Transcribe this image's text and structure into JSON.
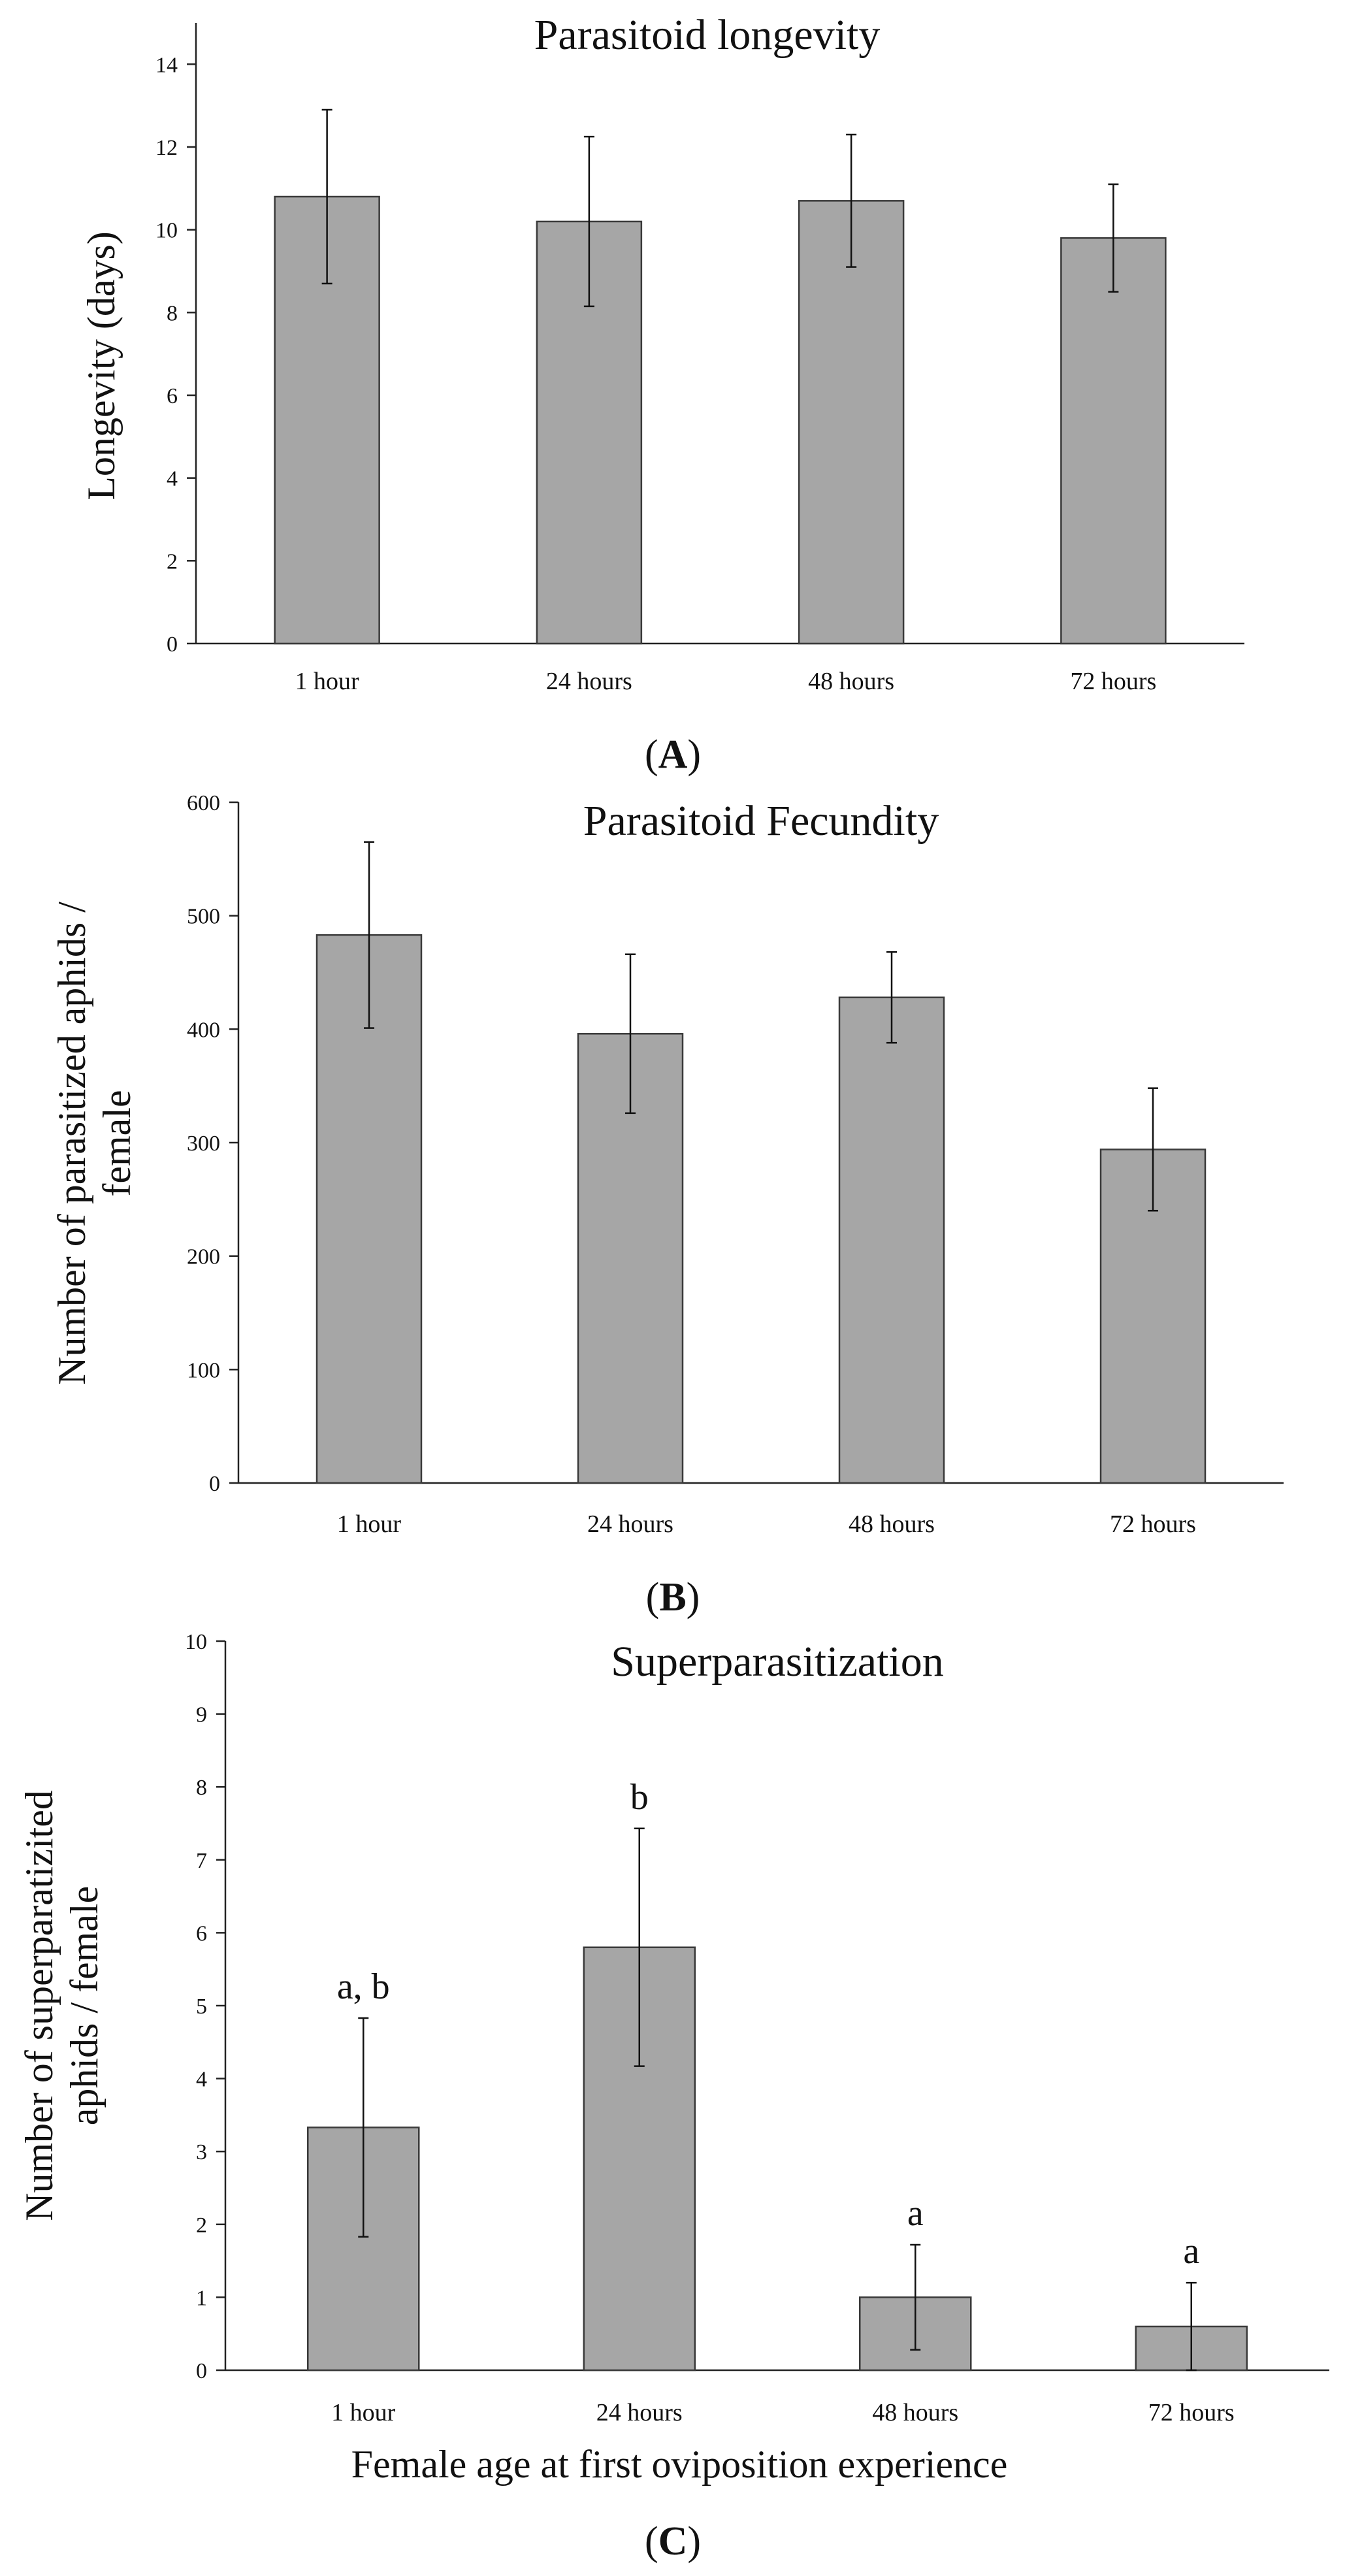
{
  "chart_data": [
    {
      "type": "bar",
      "panel_label": "A",
      "title": "Parasitoid longevity",
      "ylabel": "Longevity (days)",
      "xlabel": "",
      "categories": [
        "1 hour",
        "24 hours",
        "48 hours",
        "72 hours"
      ],
      "values": [
        10.8,
        10.2,
        10.7,
        9.8
      ],
      "error": [
        2.1,
        2.05,
        1.6,
        1.3
      ],
      "ylim": [
        0,
        15
      ],
      "yticks": [
        0,
        2,
        4,
        6,
        8,
        10,
        12,
        14
      ],
      "annotations": []
    },
    {
      "type": "bar",
      "panel_label": "B",
      "title": "Parasitoid Fecundity",
      "ylabel": "Number of parasitized aphids / female",
      "xlabel": "",
      "categories": [
        "1 hour",
        "24 hours",
        "48 hours",
        "72 hours"
      ],
      "values": [
        483,
        396,
        428,
        294
      ],
      "error": [
        82,
        70,
        40,
        54
      ],
      "ylim": [
        0,
        600
      ],
      "yticks": [
        0,
        100,
        200,
        300,
        400,
        500,
        600
      ],
      "annotations": []
    },
    {
      "type": "bar",
      "panel_label": "C",
      "title": "Superparasitization",
      "ylabel": "Number of superparatizited aphids / female",
      "xlabel": "Female age at first oviposition experience",
      "categories": [
        "1 hour",
        "24 hours",
        "48 hours",
        "72 hours"
      ],
      "values": [
        3.33,
        5.8,
        1.0,
        0.6
      ],
      "error": [
        1.5,
        1.63,
        0.72,
        0.6
      ],
      "ylim": [
        0,
        10
      ],
      "yticks": [
        0,
        1,
        2,
        3,
        4,
        5,
        6,
        7,
        8,
        9,
        10
      ],
      "annotations": [
        "a, b",
        "b",
        "a",
        "a"
      ]
    }
  ]
}
